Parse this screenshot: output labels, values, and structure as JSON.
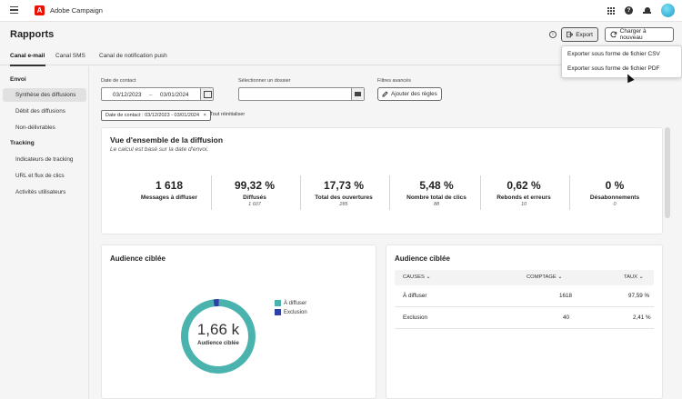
{
  "topbar": {
    "app_title": "Adobe Campaign",
    "logo_letter": "A",
    "help_glyph": "?"
  },
  "header": {
    "page_title": "Rapports",
    "info_glyph": "i",
    "export_label": "Export",
    "refresh_label": "Charger à nouveau"
  },
  "export_menu": {
    "items": [
      "Exporter sous forme de fichier CSV",
      "Exporter sous forme de fichier PDF"
    ]
  },
  "tabs": [
    {
      "label": "Canal e-mail",
      "active": true
    },
    {
      "label": "Canal SMS",
      "active": false
    },
    {
      "label": "Canal de notification push",
      "active": false
    }
  ],
  "sidebar": {
    "section_envoi": "Envoi",
    "envoi_items": [
      "Synthèse des diffusions",
      "Débit des diffusions",
      "Non-délivrables"
    ],
    "section_tracking": "Tracking",
    "tracking_items": [
      "Indicateurs de tracking",
      "URL et flux de clics",
      "Activités utilisateurs"
    ]
  },
  "filters": {
    "date_label": "Date de contact",
    "date_start": "03/12/2023",
    "date_separator": "–",
    "date_end": "03/01/2024",
    "folder_label": "Sélectionner un dossier",
    "advanced_label": "Filtres avancés",
    "add_rules_label": "Ajouter des règles",
    "chip_label": "Date de contact : 03/12/2023 - 03/01/2024",
    "chip_close": "×",
    "reset_label": "Tout réinitialiser"
  },
  "overview": {
    "title": "Vue d'ensemble de la diffusion",
    "subtitle": "Le calcul est basé sur la date d'envoi.",
    "kpis": [
      {
        "value": "1 618",
        "label": "Messages à diffuser",
        "sub": ""
      },
      {
        "value": "99,32 %",
        "label": "Diffusés",
        "sub": "1 607"
      },
      {
        "value": "17,73 %",
        "label": "Total des ouvertures",
        "sub": "285"
      },
      {
        "value": "5,48 %",
        "label": "Nombre total de clics",
        "sub": "88"
      },
      {
        "value": "0,62 %",
        "label": "Rebonds et erreurs",
        "sub": "10"
      },
      {
        "value": "0 %",
        "label": "Désabonnements",
        "sub": "0"
      }
    ]
  },
  "audience_chart": {
    "title": "Audience ciblée",
    "center_value": "1,66 k",
    "center_label": "Audience ciblée",
    "legend": [
      {
        "label": "À diffuser",
        "color": "#4bb3ae"
      },
      {
        "label": "Exclusion",
        "color": "#2f3fa8"
      }
    ]
  },
  "chart_data": {
    "type": "pie",
    "categories": [
      "À diffuser",
      "Exclusion"
    ],
    "values": [
      1618,
      40
    ],
    "title": "Audience ciblée"
  },
  "audience_table": {
    "title": "Audience ciblée",
    "columns": [
      "CAUSES",
      "COMPTAGE",
      "TAUX"
    ],
    "rows": [
      [
        "À diffuser",
        "1618",
        "97,59 %"
      ],
      [
        "Exclusion",
        "40",
        "2,41 %"
      ]
    ]
  }
}
